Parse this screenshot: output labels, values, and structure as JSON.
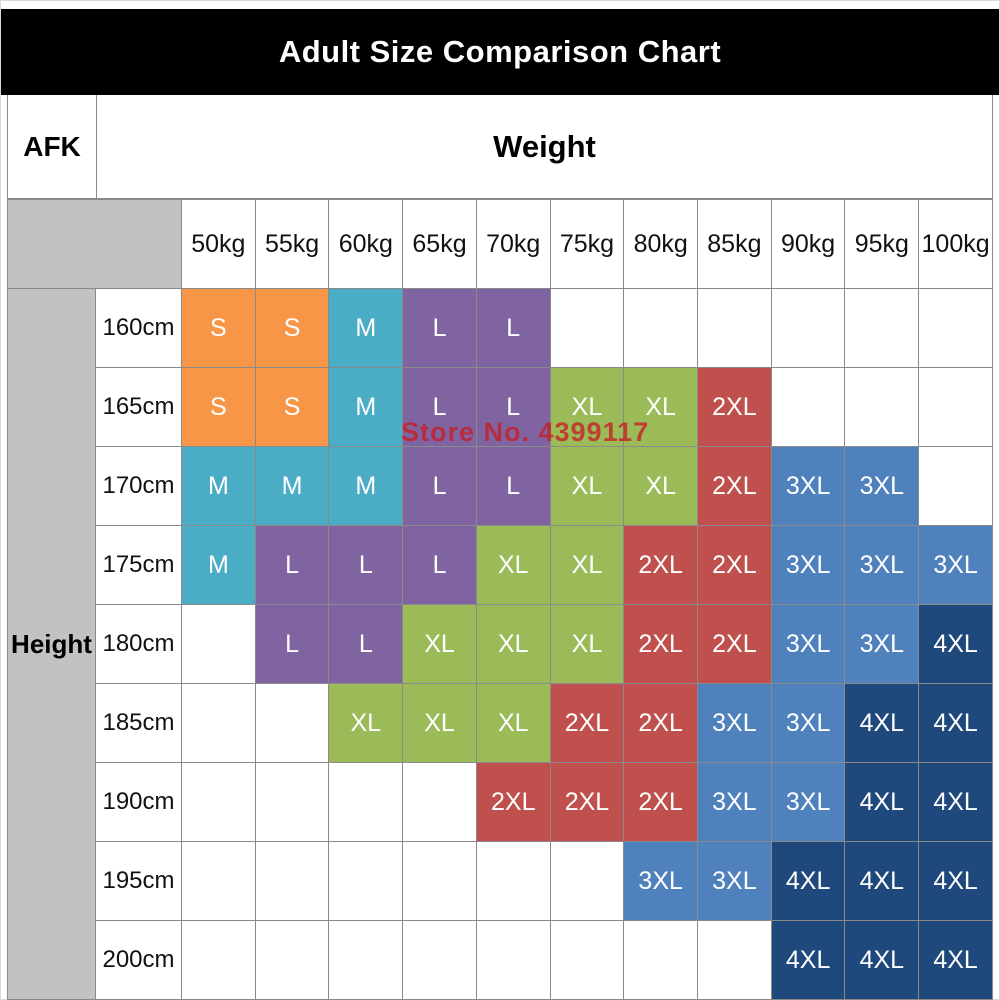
{
  "title": "Adult Size Comparison Chart",
  "corner_label": "AFK",
  "weight_header": "Weight",
  "height_header": "Height",
  "watermark": "Store No. 4399117",
  "colors": {
    "title_bar_bg": "#000000",
    "axis_strip_gray": "#c2c2c2",
    "grid_line": "#8a8a8a"
  },
  "chart_data": {
    "type": "table",
    "title": "Adult Size Comparison Chart",
    "xlabel": "Weight",
    "ylabel": "Height",
    "columns": [
      "50kg",
      "55kg",
      "60kg",
      "65kg",
      "70kg",
      "75kg",
      "80kg",
      "85kg",
      "90kg",
      "95kg",
      "100kg"
    ],
    "rows": [
      "160cm",
      "165cm",
      "170cm",
      "175cm",
      "180cm",
      "185cm",
      "190cm",
      "195cm",
      "200cm"
    ],
    "cells": [
      [
        "S",
        "S",
        "M",
        "L",
        "L",
        "",
        "",
        "",
        "",
        "",
        ""
      ],
      [
        "S",
        "S",
        "M",
        "L",
        "L",
        "XL",
        "XL",
        "2XL",
        "",
        "",
        ""
      ],
      [
        "M",
        "M",
        "M",
        "L",
        "L",
        "XL",
        "XL",
        "2XL",
        "3XL",
        "3XL",
        ""
      ],
      [
        "M",
        "L",
        "L",
        "L",
        "XL",
        "XL",
        "2XL",
        "2XL",
        "3XL",
        "3XL",
        "3XL"
      ],
      [
        "",
        "L",
        "L",
        "XL",
        "XL",
        "XL",
        "2XL",
        "2XL",
        "3XL",
        "3XL",
        "4XL"
      ],
      [
        "",
        "",
        "XL",
        "XL",
        "XL",
        "2XL",
        "2XL",
        "3XL",
        "3XL",
        "4XL",
        "4XL"
      ],
      [
        "",
        "",
        "",
        "",
        "2XL",
        "2XL",
        "2XL",
        "3XL",
        "3XL",
        "4XL",
        "4XL"
      ],
      [
        "",
        "",
        "",
        "",
        "",
        "",
        "3XL",
        "3XL",
        "4XL",
        "4XL",
        "4XL"
      ],
      [
        "",
        "",
        "",
        "",
        "",
        "",
        "",
        "",
        "4XL",
        "4XL",
        "4XL"
      ]
    ],
    "size_colors": {
      "S": "#f79646",
      "M": "#4bacc6",
      "L": "#8064a2",
      "XL": "#9bbb59",
      "2XL": "#c0504d",
      "3XL": "#4f81bd",
      "4XL": "#1f497d"
    }
  }
}
